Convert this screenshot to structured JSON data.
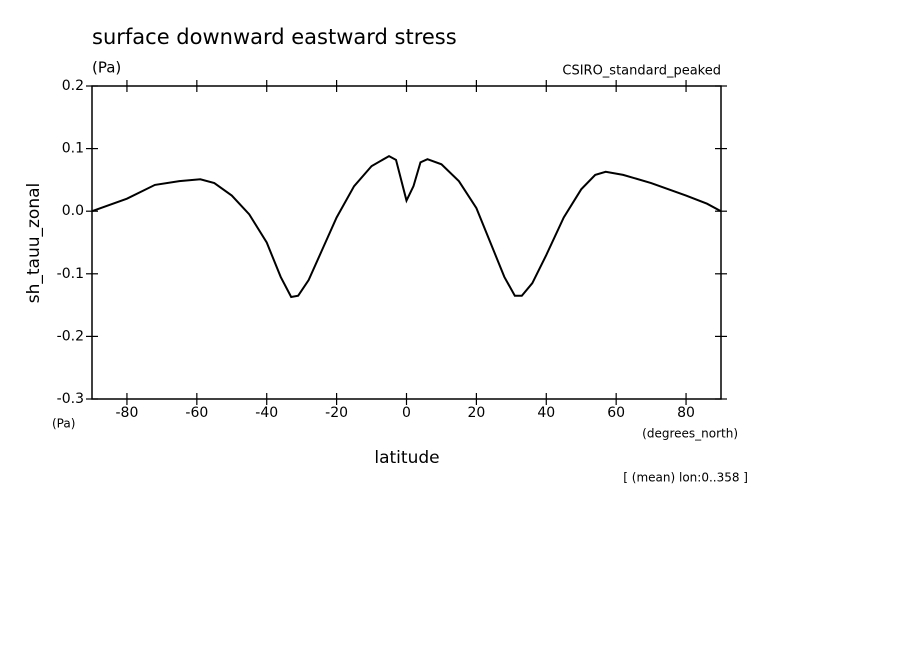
{
  "chart_data": {
    "type": "line",
    "title": "surface downward eastward stress",
    "units": "(Pa)",
    "dataset": "CSIRO_standard_peaked",
    "ylabel": "sh_tauu_zonal",
    "y_units": "(Pa)",
    "x_units": "(degrees_north)",
    "xlabel": "latitude",
    "note": "[ (mean) lon:0..358 ]",
    "color": "#000000",
    "x": [
      -90,
      -80,
      -72,
      -65,
      -59,
      -55,
      -50,
      -45,
      -40,
      -36,
      -33,
      -31,
      -28,
      -24,
      -20,
      -15,
      -10,
      -5,
      -3,
      0,
      2,
      4,
      6,
      10,
      15,
      20,
      24,
      28,
      31,
      33,
      36,
      40,
      45,
      50,
      54,
      57,
      62,
      70,
      80,
      86,
      90
    ],
    "values": [
      0.0,
      0.02,
      0.042,
      0.048,
      0.051,
      0.045,
      0.025,
      -0.005,
      -0.05,
      -0.105,
      -0.137,
      -0.135,
      -0.11,
      -0.06,
      -0.01,
      0.04,
      0.072,
      0.088,
      0.082,
      0.017,
      0.04,
      0.078,
      0.083,
      0.075,
      0.048,
      0.005,
      -0.05,
      -0.105,
      -0.135,
      -0.135,
      -0.115,
      -0.07,
      -0.01,
      0.035,
      0.058,
      0.063,
      0.058,
      0.045,
      0.025,
      0.012,
      0.0
    ],
    "xlim": [
      -90,
      90
    ],
    "xticks": [
      -80,
      -60,
      -40,
      -20,
      0,
      20,
      40,
      60,
      80
    ],
    "ylim": [
      -0.3,
      0.2
    ],
    "yticks": [
      -0.3,
      -0.2,
      -0.1,
      {
        "value": 0,
        "label": "0.0"
      },
      0.1,
      0.2
    ]
  }
}
